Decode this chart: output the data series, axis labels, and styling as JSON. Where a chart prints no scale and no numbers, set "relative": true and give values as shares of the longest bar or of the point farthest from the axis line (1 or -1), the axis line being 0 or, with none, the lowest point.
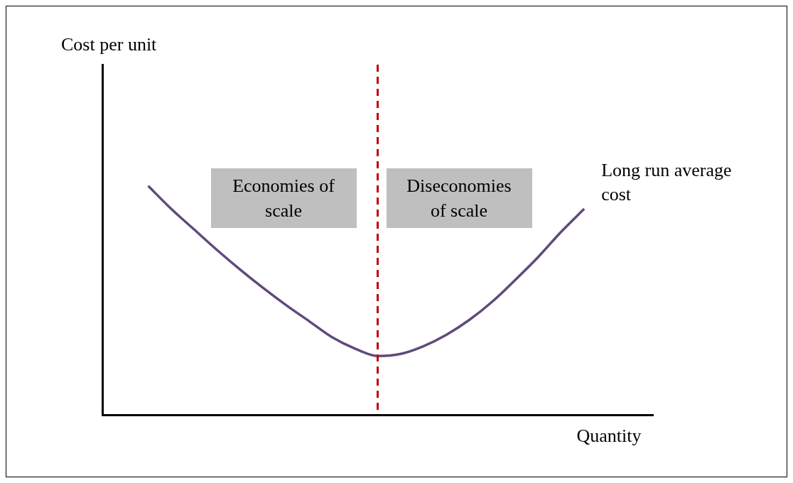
{
  "chart_data": {
    "type": "line",
    "relative": true,
    "xlabel": "Quantity",
    "categories": [
      null,
      null,
      null,
      null,
      null,
      null,
      null,
      null,
      null,
      null,
      null,
      null,
      null,
      null,
      null,
      null,
      null,
      null,
      null,
      null,
      null,
      null,
      null,
      null,
      null
    ],
    "series": [
      {
        "name": "Long run average cost",
        "color": "#604a7b",
        "values": [
          null,
          null,
          1.0,
          0.9,
          0.81,
          0.72,
          0.635,
          0.555,
          0.48,
          0.41,
          0.34,
          0.29,
          0.257,
          0.266,
          0.3,
          0.35,
          0.415,
          0.495,
          0.59,
          0.69,
          0.8,
          0.9,
          null,
          null,
          null
        ]
      }
    ],
    "annotations": [
      "Cost per unit",
      "Economies of scale",
      "Diseconomies of scale"
    ],
    "grid": false,
    "legend": false,
    "marker": "none",
    "line_style": "solid"
  }
}
